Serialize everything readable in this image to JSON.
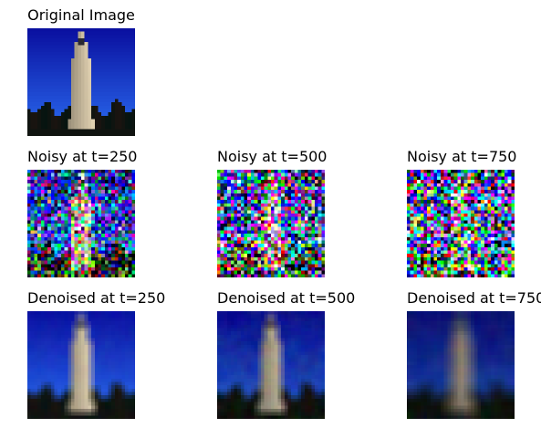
{
  "panels": [
    {
      "id": "original",
      "title": "Original Image",
      "kind": "clean",
      "t": 0
    },
    {
      "id": "noisy-250",
      "title": "Noisy at t=250",
      "kind": "noisy",
      "t": 250
    },
    {
      "id": "noisy-500",
      "title": "Noisy at t=500",
      "kind": "noisy",
      "t": 500
    },
    {
      "id": "noisy-750",
      "title": "Noisy at t=750",
      "kind": "noisy",
      "t": 750
    },
    {
      "id": "denoised-250",
      "title": "Denoised at t=250",
      "kind": "denoised",
      "t": 250
    },
    {
      "id": "denoised-500",
      "title": "Denoised at t=500",
      "kind": "denoised",
      "t": 500
    },
    {
      "id": "denoised-750",
      "title": "Denoised at t=750",
      "kind": "denoised",
      "t": 750
    }
  ],
  "colors": {
    "sky_top": "#0a10a0",
    "sky_bottom": "#2a6cf0",
    "tower": "#e0d0b0",
    "trees": "#101410"
  }
}
